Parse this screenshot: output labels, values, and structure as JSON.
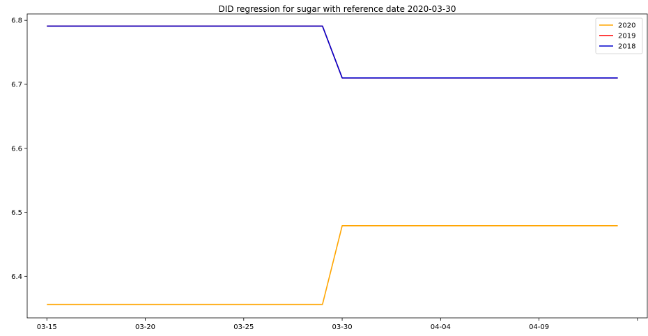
{
  "chart_data": {
    "type": "line",
    "title": "DID regression for sugar with reference date 2020-03-30",
    "xlabel": "",
    "ylabel": "",
    "x_tick_labels": [
      "03-15",
      "03-20",
      "03-25",
      "03-30",
      "04-04",
      "04-09",
      ""
    ],
    "x_tick_days": [
      0,
      5,
      10,
      15,
      20,
      25,
      30
    ],
    "xlim_days": [
      -1,
      30.5
    ],
    "ylim": [
      6.335,
      6.81
    ],
    "y_ticks": [
      6.4,
      6.5,
      6.6,
      6.7,
      6.8
    ],
    "y_tick_labels": [
      "6.4",
      "6.5",
      "6.6",
      "6.7",
      "6.8"
    ],
    "legend_position": "top-right",
    "grid": false,
    "series": [
      {
        "name": "2020",
        "color": "#FFA500",
        "x_days": [
          0,
          14,
          15,
          29
        ],
        "values": [
          6.356,
          6.356,
          6.479,
          6.479
        ]
      },
      {
        "name": "2019",
        "color": "#FF0000",
        "x_days": [
          0,
          14,
          15,
          29
        ],
        "values": [
          6.791,
          6.791,
          6.71,
          6.71
        ]
      },
      {
        "name": "2018",
        "color": "#0000CC",
        "x_days": [
          0,
          14,
          15,
          29
        ],
        "values": [
          6.791,
          6.791,
          6.71,
          6.71
        ]
      }
    ]
  }
}
